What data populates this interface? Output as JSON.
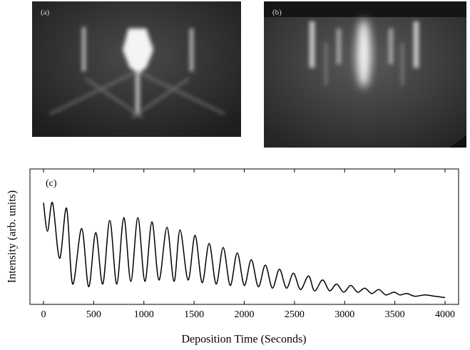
{
  "panels": [
    {
      "label": "(a)"
    },
    {
      "label": "(b)"
    }
  ],
  "chart_data": {
    "type": "line",
    "annotation": "(c)",
    "x_label": "Deposition Time (Seconds)",
    "y_label": "Intensity (arb. units)",
    "xlim": [
      -135,
      4135
    ],
    "ylim": [
      0,
      1
    ],
    "xticks": [
      0,
      500,
      1000,
      1500,
      2000,
      2500,
      3000,
      3500,
      4000
    ],
    "series": [
      {
        "color": "#000000",
        "x": [
          0,
          40,
          90,
          160,
          230,
          290,
          380,
          450,
          520,
          590,
          660,
          730,
          800,
          870,
          940,
          1010,
          1080,
          1150,
          1230,
          1300,
          1360,
          1440,
          1510,
          1580,
          1650,
          1720,
          1790,
          1860,
          1930,
          2000,
          2070,
          2140,
          2210,
          2280,
          2350,
          2420,
          2490,
          2560,
          2640,
          2700,
          2780,
          2850,
          2920,
          2990,
          3060,
          3130,
          3200,
          3270,
          3340,
          3410,
          3490,
          3550,
          3620,
          3700,
          3800,
          3900,
          4000
        ],
        "values": [
          0.75,
          0.54,
          0.75,
          0.34,
          0.71,
          0.15,
          0.56,
          0.13,
          0.53,
          0.15,
          0.62,
          0.15,
          0.64,
          0.17,
          0.64,
          0.17,
          0.61,
          0.18,
          0.57,
          0.17,
          0.55,
          0.18,
          0.51,
          0.16,
          0.45,
          0.15,
          0.42,
          0.14,
          0.38,
          0.14,
          0.33,
          0.13,
          0.29,
          0.12,
          0.26,
          0.12,
          0.23,
          0.11,
          0.21,
          0.1,
          0.18,
          0.1,
          0.15,
          0.09,
          0.14,
          0.09,
          0.12,
          0.08,
          0.11,
          0.07,
          0.09,
          0.07,
          0.08,
          0.06,
          0.07,
          0.06,
          0.05
        ]
      }
    ]
  }
}
